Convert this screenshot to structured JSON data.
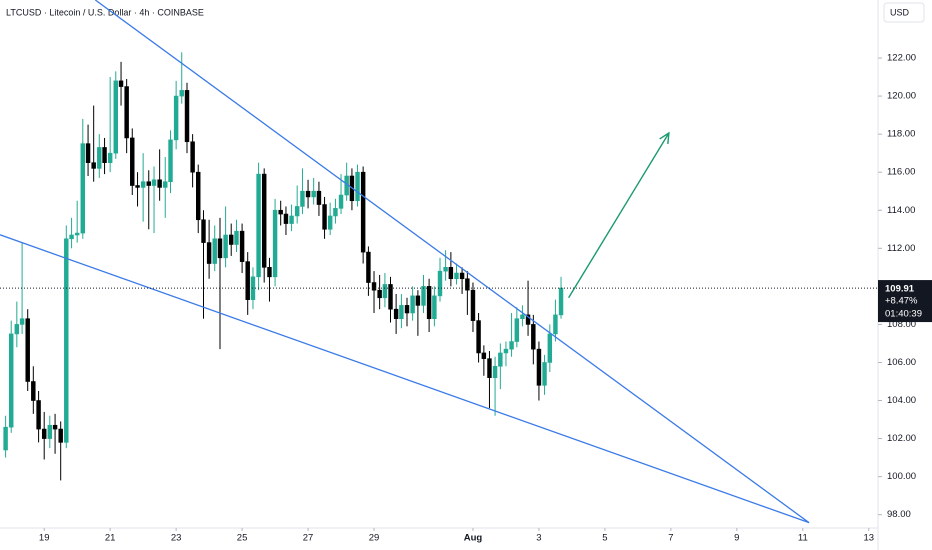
{
  "chart_data": {
    "type": "candlestick",
    "title": "LTCUSD · Litecoin / U.S. Dollar · 4h · COINBASE",
    "currency": "USD",
    "up_color": "#22ab94",
    "down_color": "#000000",
    "x": [
      -1.17,
      -1,
      -0.83,
      -0.67,
      -0.5,
      -0.33,
      -0.17,
      0,
      0.17,
      0.33,
      0.5,
      0.67,
      0.83,
      1,
      1.17,
      1.33,
      1.5,
      1.67,
      1.83,
      2,
      2.17,
      2.33,
      2.5,
      2.67,
      2.83,
      3,
      3.17,
      3.33,
      3.5,
      3.67,
      3.83,
      4,
      4.17,
      4.33,
      4.5,
      4.67,
      4.83,
      5,
      5.17,
      5.33,
      5.5,
      5.67,
      5.83,
      6,
      6.17,
      6.33,
      6.5,
      6.67,
      6.83,
      7,
      7.17,
      7.33,
      7.5,
      7.67,
      7.83,
      8,
      8.17,
      8.33,
      8.5,
      8.67,
      8.83,
      9,
      9.17,
      9.33,
      9.5,
      9.67,
      9.83,
      10,
      10.17,
      10.33,
      10.5,
      10.67,
      10.83,
      11,
      11.17,
      11.33,
      11.5,
      11.67,
      11.83,
      12,
      12.17,
      12.33,
      12.5,
      12.67,
      12.83,
      13,
      13.17,
      13.33,
      13.5,
      13.67,
      13.83,
      14,
      14.17,
      14.33,
      14.5,
      14.67,
      14.83,
      15,
      15.17,
      15.33,
      15.5,
      15.67
    ],
    "open": [
      101.4,
      102.6,
      107.5,
      108,
      108.3,
      105,
      104,
      102.5,
      102,
      102.7,
      102.5,
      101.8,
      112.5,
      112.7,
      112.8,
      117.5,
      116.5,
      116.2,
      117.3,
      116.5,
      117,
      120.8,
      120.5,
      117.8,
      115.3,
      115.2,
      115.5,
      115.3,
      115.6,
      115.2,
      115.5,
      117.7,
      120,
      120.3,
      117.6,
      116,
      113.5,
      112.3,
      111.2,
      112.5,
      111.5,
      112.7,
      112.2,
      112.9,
      111.3,
      109.3,
      110.5,
      115.9,
      111,
      110.5,
      114,
      113.8,
      113.3,
      113.7,
      114.2,
      115,
      114.7,
      115,
      114.3,
      113,
      113.7,
      114.1,
      114.8,
      115.8,
      114.5,
      116,
      111.8,
      110.2,
      109.8,
      109.4,
      110.1,
      108.8,
      108.3,
      109,
      108.6,
      109.5,
      109,
      110,
      108.3,
      109.5,
      110.8,
      111,
      110.4,
      110.7,
      110.4,
      109.8,
      108.2,
      106.5,
      106.2,
      105.2,
      105.8,
      106.5,
      106.7,
      107.1,
      108.3,
      108.5,
      108,
      106.7,
      104.8,
      106,
      107.5,
      108.5
    ],
    "high": [
      103.2,
      108.2,
      109.2,
      112.3,
      108.8,
      105.8,
      104.5,
      103.4,
      103.2,
      103.3,
      102.9,
      113.2,
      113.6,
      114.5,
      118.8,
      118.5,
      119.5,
      118,
      117.8,
      121,
      121.3,
      121.8,
      120.9,
      118.3,
      116,
      117,
      116.1,
      116.3,
      117.2,
      116.8,
      118.2,
      120.8,
      122.3,
      120.7,
      118,
      116.4,
      114,
      113.5,
      113.2,
      113.6,
      114.2,
      113.3,
      113.5,
      113.3,
      111.8,
      111,
      116.5,
      116.2,
      111.5,
      114.6,
      114.5,
      114.2,
      114.3,
      115.3,
      116.2,
      115.6,
      115.7,
      115.5,
      114.7,
      114.4,
      114.6,
      115.9,
      116.5,
      116.2,
      116.4,
      116.3,
      112.1,
      110.8,
      110.6,
      110.7,
      110.5,
      109.6,
      109.6,
      109.4,
      110,
      109.8,
      110.6,
      110.4,
      110,
      111.5,
      111.9,
      111.8,
      111.2,
      111,
      110.8,
      110.2,
      108.6,
      106.9,
      106.6,
      106.3,
      107,
      107.1,
      108.6,
      108.9,
      109,
      110.3,
      108.5,
      107.1,
      106.4,
      108,
      109.3,
      110.5
    ],
    "low": [
      101,
      102.3,
      106.8,
      107.5,
      104.5,
      103.3,
      101.8,
      100.9,
      101.5,
      101.2,
      99.8,
      101.5,
      112,
      112.3,
      112.5,
      115.8,
      115.5,
      115.7,
      115.9,
      116,
      116.7,
      119.5,
      117,
      114.8,
      114.2,
      113.4,
      113,
      112.8,
      114.5,
      113.6,
      114.9,
      117.2,
      119.6,
      117,
      115.2,
      112.8,
      108.3,
      110.4,
      110.8,
      106.7,
      111,
      111.6,
      111.8,
      110.7,
      108.5,
      108.8,
      109.8,
      110.2,
      109.2,
      110,
      113.2,
      112.7,
      112.9,
      113.3,
      113.8,
      114.1,
      114.3,
      113.7,
      112.5,
      112.7,
      113.3,
      113.8,
      114.5,
      114,
      114.2,
      111.2,
      109.5,
      108.6,
      108.8,
      108.9,
      108.1,
      107.5,
      107.8,
      107.9,
      108.2,
      107.4,
      108.6,
      107.6,
      107.9,
      109.2,
      110.3,
      110,
      110.1,
      109.6,
      108.5,
      107.6,
      106,
      105.3,
      103.6,
      103.2,
      104.6,
      105.8,
      106.3,
      106.8,
      107.9,
      107.4,
      105.9,
      104,
      104.3,
      105.5,
      107.1,
      108.3
    ],
    "close": [
      102.6,
      107.5,
      108,
      108.3,
      105,
      104,
      102.5,
      102,
      102.7,
      102.5,
      101.8,
      112.5,
      112.7,
      112.8,
      117.5,
      116.5,
      116.2,
      117.3,
      116.5,
      117,
      120.8,
      120.5,
      117.8,
      115.3,
      115.2,
      115.5,
      115.3,
      115.6,
      115.2,
      115.5,
      117.7,
      120,
      120.3,
      117.6,
      116,
      113.5,
      112.3,
      111.2,
      112.5,
      111.5,
      112.7,
      112.2,
      112.9,
      111.3,
      109.3,
      110.5,
      115.9,
      111,
      110.5,
      114,
      113.8,
      113.3,
      113.7,
      114.2,
      115,
      114.7,
      115,
      114.3,
      113,
      113.7,
      114.1,
      114.8,
      115.8,
      114.5,
      116,
      111.8,
      110.2,
      109.8,
      109.4,
      110.1,
      108.8,
      108.3,
      109,
      108.6,
      109.5,
      109,
      110,
      108.3,
      109.5,
      110.8,
      111,
      110.4,
      110.7,
      110.4,
      109.8,
      108.2,
      106.5,
      106.2,
      105.2,
      105.8,
      106.5,
      106.7,
      107.1,
      108.3,
      108.5,
      108,
      106.7,
      104.8,
      106,
      107.5,
      108.5,
      109.91
    ],
    "change_label": "+8.47%",
    "countdown": "01:40:39",
    "xlim": [
      -1.34,
      25.28
    ],
    "ylim": [
      97.3,
      125.05
    ],
    "xticks": [
      {
        "value": 0,
        "label": "19"
      },
      {
        "value": 2,
        "label": "21"
      },
      {
        "value": 4,
        "label": "23"
      },
      {
        "value": 6,
        "label": "25"
      },
      {
        "value": 8,
        "label": "27"
      },
      {
        "value": 10,
        "label": "29"
      },
      {
        "value": 13,
        "label": "Aug"
      },
      {
        "value": 15,
        "label": "3"
      },
      {
        "value": 17,
        "label": "5"
      },
      {
        "value": 19,
        "label": "7"
      },
      {
        "value": 21,
        "label": "9"
      },
      {
        "value": 23,
        "label": "11"
      },
      {
        "value": 25,
        "label": "13"
      }
    ],
    "yticks": [
      {
        "value": 98,
        "label": "98.00"
      },
      {
        "value": 100,
        "label": "100.00"
      },
      {
        "value": 102,
        "label": "102.00"
      },
      {
        "value": 104,
        "label": "104.00"
      },
      {
        "value": 106,
        "label": "106.00"
      },
      {
        "value": 108,
        "label": "108.00"
      },
      {
        "value": 110,
        "label": "110.00"
      },
      {
        "value": 112,
        "label": "112.00"
      },
      {
        "value": 114,
        "label": "114.00"
      },
      {
        "value": 116,
        "label": "116.00"
      },
      {
        "value": 118,
        "label": "118.00"
      },
      {
        "value": 120,
        "label": "120.00"
      },
      {
        "value": 122,
        "label": "122.00"
      }
    ],
    "trendlines": [
      {
        "color": "#3b7be8",
        "points": [
          [
            1.55,
            125.05
          ],
          [
            23.19,
            97.58
          ]
        ]
      },
      {
        "color": "#3b7be8",
        "points": [
          [
            -1.34,
            112.71
          ],
          [
            23.19,
            97.58
          ]
        ]
      }
    ],
    "arrow": {
      "color": "#1a9a6c",
      "points": [
        [
          15.9,
          109.4
        ],
        [
          18.94,
          118.06
        ]
      ]
    }
  }
}
